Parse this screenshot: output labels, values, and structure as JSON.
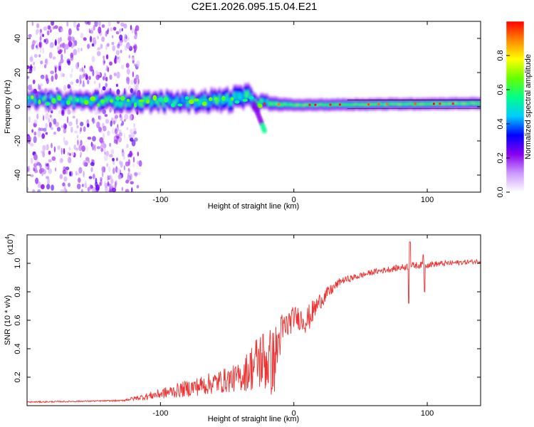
{
  "title": "C2E1.2026.095.15.04.E21",
  "chart_data": [
    {
      "type": "heatmap",
      "name": "spectrogram",
      "xlabel": "Height of straight line (km)",
      "ylabel": "Frequency (Hz)",
      "xlim": [
        -200,
        140
      ],
      "ylim": [
        -50,
        50
      ],
      "xticks": [
        "-100",
        "0",
        "100"
      ],
      "xtick_values": [
        -100,
        0,
        100
      ],
      "yticks": [
        "-40",
        "-20",
        "0",
        "20",
        "40"
      ],
      "ytick_values": [
        -40,
        -20,
        0,
        20,
        40
      ],
      "colorbar": {
        "label": "Normalized spectral amplitude",
        "range": [
          0,
          1
        ],
        "ticks": [
          "0.0",
          "0.2",
          "0.4",
          "0.6",
          "0.8"
        ],
        "tick_values": [
          0.0,
          0.2,
          0.4,
          0.6,
          0.8
        ],
        "colormap": [
          "#ffffff",
          "#cc99ff",
          "#8800ee",
          "#0000ff",
          "#00ccff",
          "#00ff88",
          "#66ff00",
          "#ffff00",
          "#ff8800",
          "#ff0000"
        ]
      },
      "band": [
        {
          "x": -200,
          "y_center": 4,
          "halfwidth": 3
        },
        {
          "x": -110,
          "y_center": 3,
          "halfwidth": 4
        },
        {
          "x": -80,
          "y_center": 3,
          "halfwidth": 4
        },
        {
          "x": -50,
          "y_center": 4,
          "halfwidth": 5
        },
        {
          "x": -35,
          "y_center": 6,
          "halfwidth": 5
        },
        {
          "x": -25,
          "y_center": 2,
          "halfwidth": 3
        },
        {
          "x": 0,
          "y_center": 1,
          "halfwidth": 2
        },
        {
          "x": 140,
          "y_center": 2,
          "halfwidth": 2
        }
      ],
      "branch": {
        "x_start": -30,
        "y_start": 2,
        "x_end": -22,
        "y_end": -14
      },
      "noise_region": {
        "x_min": -200,
        "x_max": -115,
        "y_min": -50,
        "y_max": 50
      }
    },
    {
      "type": "line",
      "name": "snr",
      "xlabel": "Height of straight line (km)",
      "ylabel": "SNR (10 * v/v)",
      "scale_label": "(x10",
      "scale_exp": "4",
      "xlim": [
        -200,
        140
      ],
      "ylim": [
        0,
        1.2
      ],
      "xticks": [
        "-100",
        "0",
        "100"
      ],
      "xtick_values": [
        -100,
        0,
        100
      ],
      "yticks": [
        "0.2",
        "0.4",
        "0.6",
        "0.8",
        "1.0"
      ],
      "ytick_values": [
        0.2,
        0.4,
        0.6,
        0.8,
        1.0
      ],
      "color": "#ee3333",
      "envelope": [
        {
          "x": -200,
          "base": 0.02,
          "spread": 0.01
        },
        {
          "x": -130,
          "base": 0.03,
          "spread": 0.01
        },
        {
          "x": -110,
          "base": 0.04,
          "spread": 0.05
        },
        {
          "x": -80,
          "base": 0.06,
          "spread": 0.12
        },
        {
          "x": -40,
          "base": 0.1,
          "spread": 0.2
        },
        {
          "x": -25,
          "base": 0.1,
          "spread": 0.45
        },
        {
          "x": -15,
          "base": 0.05,
          "spread": 0.5
        },
        {
          "x": -10,
          "base": 0.35,
          "spread": 0.3
        },
        {
          "x": 0,
          "base": 0.55,
          "spread": 0.15
        },
        {
          "x": 10,
          "base": 0.5,
          "spread": 0.2
        },
        {
          "x": 20,
          "base": 0.68,
          "spread": 0.12
        },
        {
          "x": 35,
          "base": 0.85,
          "spread": 0.05
        },
        {
          "x": 60,
          "base": 0.92,
          "spread": 0.04
        },
        {
          "x": 90,
          "base": 0.96,
          "spread": 0.05
        },
        {
          "x": 140,
          "base": 1.0,
          "spread": 0.03
        }
      ],
      "spikes": [
        {
          "x": 87,
          "y": 1.15
        },
        {
          "x": 86,
          "y": 0.72
        },
        {
          "x": 97,
          "y": 1.06
        },
        {
          "x": 98,
          "y": 0.8
        }
      ]
    }
  ]
}
